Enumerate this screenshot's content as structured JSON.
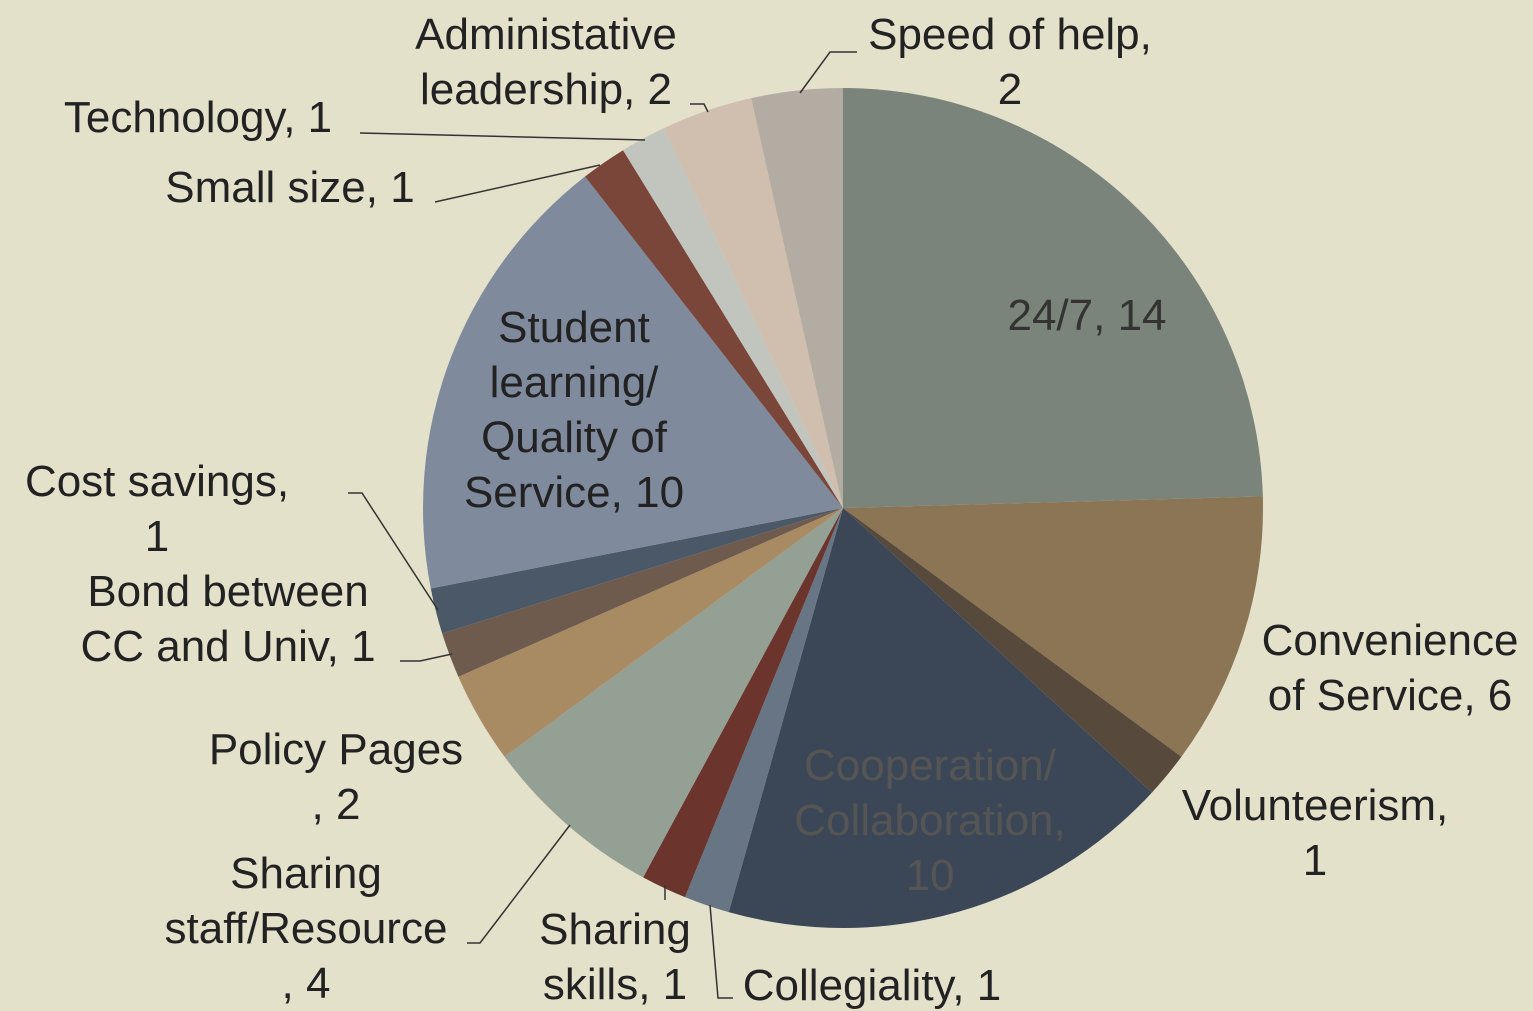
{
  "chart_data": {
    "type": "pie",
    "values": [
      14,
      6,
      1,
      10,
      1,
      1,
      4,
      2,
      1,
      1,
      10,
      1,
      1,
      2,
      2
    ],
    "value_labels": [
      "24/7, 14",
      "Convenience\nof Service, 6",
      "Volunteerism,\n1",
      "Cooperation/\nCollaboration,\n10",
      "Collegiality, 1",
      "Sharing\nskills, 1",
      "Sharing\nstaff/Resource\n, 4",
      "Policy Pages\n, 2",
      "Bond between\nCC and Univ, 1",
      "Cost savings,\n1",
      "Student\nlearning/\nQuality of\nService, 10",
      "Small size, 1",
      "Technology, 1",
      "Administative\nleadership, 2",
      "Speed of help,\n2"
    ],
    "colors": [
      "#7b847b",
      "#8b7555",
      "#574a3d",
      "#3b4757",
      "#677585",
      "#6b342c",
      "#93a093",
      "#a88b63",
      "#6e5b4e",
      "#4a5868",
      "#7f8a9d",
      "#7a463a",
      "#c2c5bd",
      "#d0bfae",
      "#b3aca3"
    ]
  }
}
